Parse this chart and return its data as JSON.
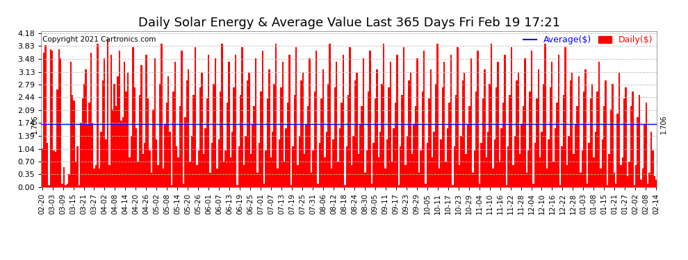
{
  "title": "Daily Solar Energy & Average Value Last 365 Days Fri Feb 19 17:21",
  "copyright": "Copyright 2021 Cartronics.com",
  "average_value": 1.706,
  "average_label": "1.706",
  "ylim": [
    0.0,
    4.18
  ],
  "yticks": [
    0.0,
    0.35,
    0.7,
    1.04,
    1.39,
    1.74,
    2.09,
    2.44,
    2.79,
    3.13,
    3.48,
    3.83,
    4.18
  ],
  "bar_color": "#ff0000",
  "average_line_color": "#0000ff",
  "background_color": "#ffffff",
  "grid_color": "#bbbbbb",
  "legend_average_color": "#0000ff",
  "legend_daily_color": "#ff0000",
  "title_fontsize": 13,
  "copyright_fontsize": 7.5,
  "tick_fontsize": 8,
  "x_labels": [
    "02-20",
    "03-03",
    "03-09",
    "03-15",
    "03-21",
    "03-27",
    "04-02",
    "04-08",
    "04-14",
    "04-20",
    "04-26",
    "05-02",
    "05-08",
    "05-14",
    "05-20",
    "05-26",
    "06-01",
    "06-07",
    "06-13",
    "06-19",
    "06-25",
    "07-01",
    "07-07",
    "07-13",
    "07-19",
    "07-25",
    "07-31",
    "08-06",
    "08-12",
    "08-18",
    "08-24",
    "08-30",
    "09-05",
    "09-11",
    "09-17",
    "09-23",
    "09-29",
    "10-05",
    "10-11",
    "10-17",
    "10-23",
    "10-29",
    "11-04",
    "11-10",
    "11-16",
    "11-22",
    "11-28",
    "12-04",
    "12-10",
    "12-16",
    "12-22",
    "12-28",
    "01-03",
    "01-08",
    "01-15",
    "01-21",
    "01-27",
    "02-02",
    "02-08",
    "02-14"
  ],
  "num_bars": 365,
  "bar_values": [
    1.05,
    3.65,
    3.85,
    1.2,
    0.05,
    3.75,
    3.7,
    1.0,
    0.95,
    2.65,
    3.75,
    3.5,
    0.1,
    0.55,
    0.05,
    0.1,
    0.35,
    3.4,
    2.5,
    2.35,
    0.7,
    1.1,
    0.05,
    1.75,
    2.4,
    2.8,
    3.2,
    1.7,
    2.3,
    3.65,
    1.75,
    0.5,
    0.6,
    3.9,
    0.5,
    1.5,
    2.9,
    3.5,
    1.3,
    4.0,
    0.6,
    3.6,
    2.1,
    2.8,
    2.2,
    3.0,
    3.7,
    1.8,
    1.9,
    3.4,
    2.6,
    3.1,
    0.8,
    1.4,
    3.8,
    2.7,
    1.6,
    0.7,
    2.5,
    3.3,
    0.9,
    1.2,
    3.6,
    2.4,
    1.0,
    0.4,
    2.1,
    3.5,
    1.3,
    0.6,
    2.8,
    3.9,
    0.5,
    1.7,
    2.3,
    3.0,
    1.5,
    0.05,
    2.6,
    3.4,
    1.1,
    0.8,
    2.2,
    3.7,
    0.1,
    1.9,
    2.9,
    3.2,
    0.7,
    1.4,
    2.5,
    3.8,
    0.6,
    1.0,
    2.7,
    3.1,
    0.9,
    1.6,
    2.4,
    3.6,
    0.4,
    1.2,
    2.8,
    3.5,
    0.5,
    1.3,
    2.6,
    3.9,
    0.7,
    1.0,
    2.3,
    3.4,
    0.8,
    1.5,
    2.7,
    3.6,
    0.05,
    1.1,
    2.5,
    3.8,
    0.6,
    1.4,
    2.9,
    3.1,
    0.9,
    1.7,
    2.2,
    3.5,
    0.4,
    1.2,
    2.6,
    3.7,
    0.1,
    1.0,
    2.4,
    3.2,
    0.8,
    1.5,
    2.8,
    3.9,
    0.5,
    1.3,
    2.7,
    3.4,
    0.7,
    1.6,
    2.3,
    3.6,
    0.05,
    1.1,
    2.5,
    3.8,
    0.6,
    1.4,
    2.9,
    3.1,
    0.9,
    1.7,
    2.2,
    3.5,
    0.4,
    1.0,
    2.6,
    3.7,
    0.1,
    1.2,
    2.4,
    3.2,
    0.8,
    1.5,
    2.8,
    3.9,
    0.5,
    1.3,
    2.7,
    3.4,
    0.7,
    1.6,
    2.3,
    3.6,
    0.05,
    1.1,
    2.5,
    3.8,
    0.6,
    1.4,
    2.9,
    3.1,
    0.9,
    1.7,
    2.2,
    3.5,
    0.4,
    1.0,
    2.6,
    3.7,
    0.1,
    1.2,
    2.4,
    3.2,
    0.8,
    1.5,
    2.8,
    3.9,
    0.5,
    1.3,
    2.7,
    3.4,
    0.7,
    1.6,
    2.3,
    3.6,
    0.05,
    1.1,
    2.5,
    3.8,
    0.6,
    1.4,
    2.9,
    3.1,
    0.9,
    1.7,
    2.2,
    3.5,
    0.4,
    1.0,
    2.6,
    3.7,
    0.1,
    1.2,
    2.4,
    3.2,
    0.8,
    1.5,
    2.8,
    3.9,
    0.5,
    1.3,
    2.7,
    3.4,
    0.7,
    1.6,
    2.3,
    3.6,
    0.05,
    1.1,
    2.5,
    3.8,
    0.6,
    1.4,
    2.9,
    3.1,
    0.9,
    1.7,
    2.2,
    3.5,
    0.4,
    1.0,
    2.6,
    3.7,
    0.1,
    1.2,
    2.4,
    3.2,
    0.8,
    1.5,
    2.8,
    3.9,
    0.5,
    1.3,
    2.7,
    3.4,
    0.7,
    1.6,
    2.3,
    3.6,
    0.05,
    1.1,
    2.5,
    3.8,
    0.6,
    1.4,
    2.9,
    3.1,
    0.9,
    1.7,
    2.2,
    3.5,
    0.4,
    1.0,
    2.6,
    3.7,
    0.1,
    1.2,
    2.4,
    3.2,
    0.8,
    1.5,
    2.8,
    3.9,
    0.5,
    1.3,
    2.7,
    3.4,
    0.7,
    1.6,
    2.3,
    3.6,
    0.05,
    1.1,
    2.5,
    3.8,
    0.6,
    1.4,
    2.9,
    3.1,
    0.9,
    1.7,
    2.2,
    3.0,
    0.4,
    1.0,
    2.6,
    3.2,
    0.1,
    1.2,
    2.4,
    2.8,
    0.8,
    1.5,
    2.6,
    3.4,
    0.5,
    1.3,
    2.2,
    2.9,
    0.05,
    0.9,
    2.1,
    2.8,
    0.4,
    0.1,
    2.0,
    3.1,
    0.6,
    0.8,
    2.4,
    2.7,
    0.3,
    0.7,
    2.2,
    2.6,
    0.05,
    0.6,
    1.9,
    2.5,
    0.2,
    0.5,
    1.7,
    2.3,
    0.1,
    0.4,
    1.5,
    1.0,
    0.3,
    0.2
  ]
}
